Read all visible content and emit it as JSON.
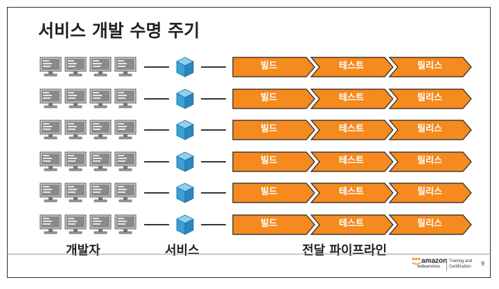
{
  "title": "서비스 개발 수명 주기",
  "pipeline_rows": [
    {
      "stages": [
        "빌드",
        "테스트",
        "릴리스"
      ]
    },
    {
      "stages": [
        "빌드",
        "테스트",
        "릴리스"
      ]
    },
    {
      "stages": [
        "빌드",
        "테스트",
        "릴리스"
      ]
    },
    {
      "stages": [
        "빌드",
        "테스트",
        "릴리스"
      ]
    },
    {
      "stages": [
        "빌드",
        "테스트",
        "릴리스"
      ]
    },
    {
      "stages": [
        "빌드",
        "테스트",
        "릴리스"
      ]
    }
  ],
  "captions": {
    "developers": "개발자",
    "services": "서비스",
    "pipeline": "전달 파이프라인"
  },
  "footer": {
    "logo_amazon": "amazon",
    "logo_webservices": "webservices",
    "logo_training": "Training and Certification",
    "page_number": "9"
  },
  "colors": {
    "stage_fill": "#f58a1f",
    "stage_border": "#222222",
    "cube_blue": "#3aa0d8",
    "computer_gray": "#8a8a8a"
  }
}
